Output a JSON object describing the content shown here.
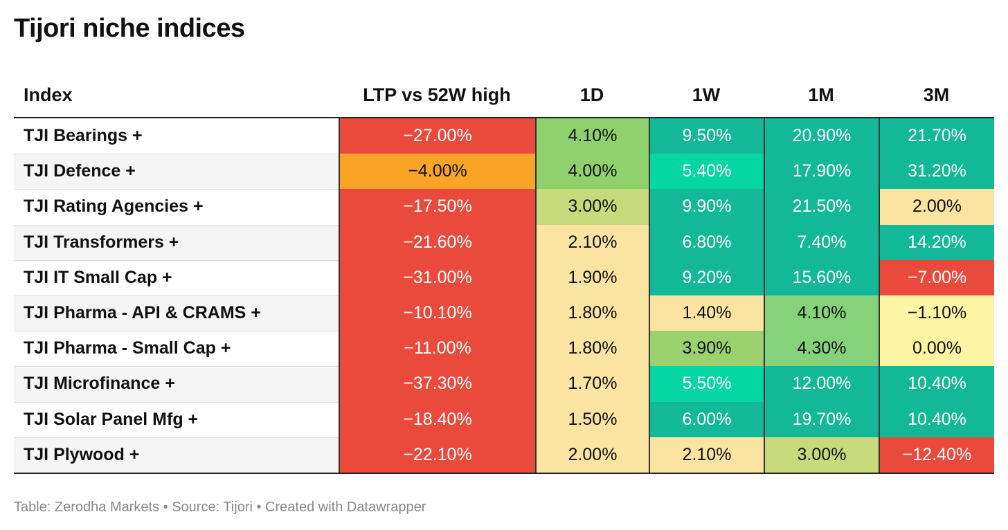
{
  "title": "Tijori niche indices",
  "table": {
    "columns": [
      "Index",
      "LTP vs 52W high",
      "1D",
      "1W",
      "1M",
      "3M"
    ],
    "rows": [
      [
        "TJI Bearings +",
        "−27.00%",
        "4.10%",
        "9.50%",
        "20.90%",
        "21.70%"
      ],
      [
        "TJI Defence +",
        "−4.00%",
        "4.00%",
        "5.40%",
        "17.90%",
        "31.20%"
      ],
      [
        "TJI Rating Agencies +",
        "−17.50%",
        "3.00%",
        "9.90%",
        "21.50%",
        "2.00%"
      ],
      [
        "TJI Transformers +",
        "−21.60%",
        "2.10%",
        "6.80%",
        "7.40%",
        "14.20%"
      ],
      [
        "TJI IT Small Cap +",
        "−31.00%",
        "1.90%",
        "9.20%",
        "15.60%",
        "−7.00%"
      ],
      [
        "TJI Pharma - API & CRAMS +",
        "−10.10%",
        "1.80%",
        "1.40%",
        "4.10%",
        "−1.10%"
      ],
      [
        "TJI Pharma - Small Cap +",
        "−11.00%",
        "1.80%",
        "3.90%",
        "4.30%",
        "0.00%"
      ],
      [
        "TJI Microfinance +",
        "−37.30%",
        "1.70%",
        "5.50%",
        "12.00%",
        "10.40%"
      ],
      [
        "TJI Solar Panel Mfg +",
        "−18.40%",
        "1.50%",
        "6.00%",
        "19.70%",
        "10.40%"
      ],
      [
        "TJI Plywood +",
        "−22.10%",
        "2.00%",
        "2.10%",
        "3.00%",
        "−12.40%"
      ]
    ],
    "cell_colors": [
      [
        "#ea4a3c",
        "#8ed16d",
        "#12b898",
        "#12b898",
        "#12b898"
      ],
      [
        "#f9a427",
        "#8ed16d",
        "#06d6a3",
        "#12b898",
        "#12b898"
      ],
      [
        "#ea4a3c",
        "#c8d97b",
        "#12b898",
        "#12b898",
        "#fbe3a1"
      ],
      [
        "#ea4a3c",
        "#fbe3a1",
        "#12b898",
        "#12b898",
        "#12b898"
      ],
      [
        "#ea4a3c",
        "#fbe3a1",
        "#12b898",
        "#12b898",
        "#ea4a3c"
      ],
      [
        "#ea4a3c",
        "#fbe3a1",
        "#fbe3a1",
        "#86d27a",
        "#fdf4a4"
      ],
      [
        "#ea4a3c",
        "#fbe3a1",
        "#9bd26f",
        "#86d27a",
        "#fdf4a4"
      ],
      [
        "#ea4a3c",
        "#fbe3a1",
        "#06d6a3",
        "#12b898",
        "#12b898"
      ],
      [
        "#ea4a3c",
        "#fbe3a1",
        "#12b898",
        "#12b898",
        "#12b898"
      ],
      [
        "#ea4a3c",
        "#fbe3a1",
        "#fbe3a1",
        "#c8d97b",
        "#ea4a3c"
      ]
    ]
  },
  "footer": "Table: Zerodha Markets • Source: Tijori • Created with Datawrapper"
}
